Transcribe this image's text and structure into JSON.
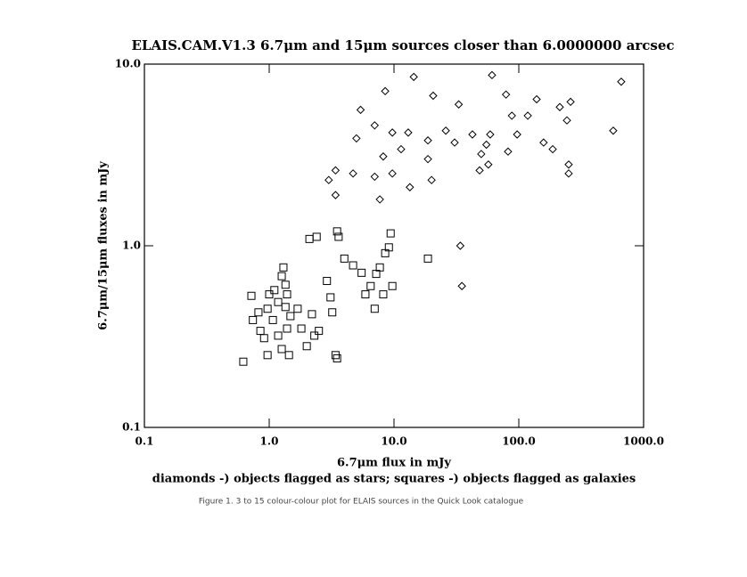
{
  "chart_data": {
    "type": "scatter",
    "title": "ELAIS.CAM.V1.3  6.7μm and 15μm sources closer than 6.0000000 arcsec",
    "x_label": "6.7μm flux in mJy",
    "y_label": "6.7μm/15μm fluxes in mJy",
    "subtitle": "diamonds -) objects flagged as stars;  squares -) objects flagged as galaxies",
    "caption": "Figure 1. 3 to 15 colour-colour plot for ELAIS sources in the Quick Look catalogue",
    "log_x": true,
    "log_y": true,
    "xlim": [
      0.1,
      1000
    ],
    "ylim": [
      0.1,
      10
    ],
    "xticks": [
      {
        "value": 0.1,
        "label": "0.1"
      },
      {
        "value": 1,
        "label": "1.0"
      },
      {
        "value": 10,
        "label": "10.0"
      },
      {
        "value": 100,
        "label": "100.0"
      },
      {
        "value": 1000,
        "label": "1000.0"
      }
    ],
    "yticks": [
      {
        "value": 0.1,
        "label": "0.1"
      },
      {
        "value": 1,
        "label": "1.0"
      },
      {
        "value": 10,
        "label": "10.0"
      }
    ],
    "series": [
      {
        "marker": "diamond",
        "color": "#000000",
        "x": [
          662,
          61,
          14.4,
          8.5,
          20.6,
          33,
          79,
          139,
          213,
          260,
          88,
          118,
          243,
          571,
          5.4,
          7.0,
          9.7,
          13,
          18.7,
          26,
          42.5,
          59,
          55,
          97,
          158,
          187,
          5.0,
          8.2,
          11.4,
          18.7,
          30.6,
          50,
          57,
          82,
          3.4,
          3.0,
          3.4,
          4.7,
          7.0,
          9.7,
          13.4,
          20,
          48.5,
          251,
          251,
          34,
          35,
          7.7
        ],
        "values": [
          8.0,
          8.7,
          8.5,
          7.1,
          6.7,
          6.0,
          6.8,
          6.4,
          5.8,
          6.2,
          5.2,
          5.2,
          4.9,
          4.3,
          5.6,
          4.6,
          4.2,
          4.2,
          3.8,
          4.3,
          4.1,
          4.1,
          3.6,
          4.1,
          3.7,
          3.4,
          3.9,
          3.1,
          3.4,
          3.0,
          3.7,
          3.2,
          2.8,
          3.3,
          2.6,
          2.3,
          1.9,
          2.5,
          2.4,
          2.5,
          2.1,
          2.3,
          2.6,
          2.8,
          2.5,
          1.0,
          0.6,
          1.8
        ]
      },
      {
        "marker": "square",
        "color": "#000000",
        "x": [
          0.62,
          0.72,
          0.82,
          0.91,
          0.97,
          1.0,
          1.07,
          1.18,
          1.26,
          1.3,
          1.35,
          1.35,
          1.39,
          1.44,
          0.74,
          0.85,
          0.97,
          1.1,
          1.18,
          1.26,
          1.39,
          1.48,
          1.69,
          1.81,
          2.0,
          2.2,
          2.3,
          2.5,
          2.9,
          3.1,
          3.2,
          3.4,
          3.5,
          3.6,
          4.0,
          2.1,
          2.4,
          4.7,
          5.5,
          5.9,
          6.5,
          7.2,
          7.7,
          8.5,
          9.1,
          9.4,
          7.0,
          8.2,
          9.7,
          18.7,
          3.5
        ],
        "values": [
          0.23,
          0.53,
          0.43,
          0.31,
          0.25,
          0.54,
          0.39,
          0.32,
          0.27,
          0.76,
          0.61,
          0.46,
          0.35,
          0.25,
          0.39,
          0.34,
          0.45,
          0.57,
          0.49,
          0.68,
          0.54,
          0.41,
          0.45,
          0.35,
          0.28,
          0.42,
          0.32,
          0.34,
          0.64,
          0.52,
          0.43,
          0.25,
          1.2,
          1.12,
          0.85,
          1.09,
          1.12,
          0.78,
          0.71,
          0.54,
          0.6,
          0.7,
          0.76,
          0.91,
          0.98,
          1.17,
          0.45,
          0.54,
          0.6,
          0.85,
          0.24
        ]
      }
    ]
  }
}
